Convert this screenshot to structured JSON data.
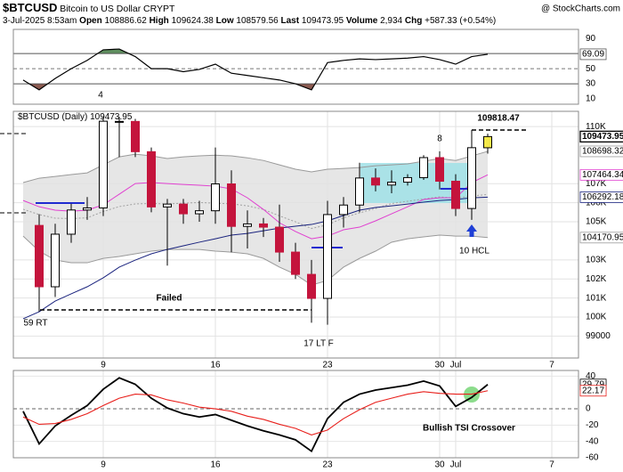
{
  "header": {
    "symbol": "$BTCUSD",
    "name": "Bitcoin to US Dollar",
    "exchange": "CRYPT",
    "credit": "@ StockCharts.com",
    "date": "3-Jul-2025 8:53am",
    "open_label": "Open",
    "high_label": "High",
    "low_label": "Low",
    "last_label": "Last",
    "volume_label": "Volume",
    "volume": "2,934",
    "chg_label": "Chg",
    "chg": "+587.33 (+0.54%)"
  },
  "chart_data": [
    {
      "type": "line",
      "color": "#000000",
      "values": [
        35,
        22,
        37,
        50,
        61,
        75,
        76,
        66,
        50,
        50,
        46,
        49,
        56,
        44,
        41,
        38,
        35,
        30,
        22,
        58,
        61,
        63,
        62,
        63,
        64,
        66,
        62,
        56,
        66,
        69.09,
        null,
        null,
        null,
        null
      ],
      "ylim": [
        3,
        102
      ],
      "yticks": [
        90,
        50,
        30,
        10
      ],
      "overbought": 70,
      "oversold": 30,
      "midline": 50,
      "overbought_color": "#5f8f5f",
      "oversold_color": "#8b5a50",
      "last_label": true
    },
    {
      "type": "candlestick",
      "legend": "$BTCUSD (Daily)",
      "categories": [
        null,
        null,
        null,
        null,
        null,
        "9",
        null,
        null,
        null,
        null,
        null,
        null,
        "16",
        null,
        null,
        null,
        null,
        null,
        null,
        "23",
        null,
        null,
        null,
        null,
        null,
        null,
        "30",
        "Jul",
        null,
        null,
        null,
        null,
        null,
        "7"
      ],
      "open": [
        null,
        104810,
        101590,
        104350,
        105620,
        105730,
        110260,
        110270,
        108680,
        105780,
        105930,
        105420,
        105580,
        106990,
        104760,
        104890,
        104720,
        103410,
        102240,
        100980,
        105380,
        105880,
        107300,
        106930,
        107080,
        107320,
        108370,
        107130,
        105700,
        108886.62,
        null,
        null,
        null,
        null
      ],
      "high": [
        null,
        105400,
        104900,
        105950,
        106300,
        110500,
        110500,
        110400,
        108900,
        106200,
        106200,
        106100,
        108900,
        107700,
        105600,
        105200,
        105900,
        103900,
        103000,
        106100,
        106300,
        108100,
        107800,
        107700,
        107500,
        108500,
        108700,
        107500,
        109818.47,
        109624.38,
        null,
        null,
        null,
        null
      ],
      "low": [
        null,
        100280,
        101050,
        103900,
        105100,
        105300,
        108400,
        108400,
        105500,
        102700,
        104900,
        105000,
        104900,
        103400,
        103600,
        104200,
        102900,
        102000,
        99700,
        99600,
        104700,
        105500,
        106600,
        106500,
        106900,
        107200,
        106700,
        105300,
        105100,
        108579.56,
        null,
        null,
        null,
        null
      ],
      "close": [
        null,
        101590,
        104350,
        105620,
        105730,
        110280,
        110270,
        108680,
        105780,
        105930,
        105420,
        105580,
        106990,
        104760,
        104890,
        104720,
        103410,
        102240,
        100980,
        105380,
        105880,
        107300,
        106930,
        107080,
        107320,
        108370,
        107130,
        105700,
        108890,
        109473.95,
        null,
        null,
        null,
        null
      ],
      "up_color": "#ffffff",
      "down_color": "#c4143c",
      "last_color": "#f3e84a",
      "band_fill": "#e6e6e6",
      "series": [
        {
          "color": "#9a9a9a",
          "last_label": true,
          "values": [
            107060,
            107290,
            107380,
            107480,
            107570,
            107990,
            108410,
            108550,
            108460,
            108320,
            108410,
            108460,
            108500,
            108460,
            108360,
            108220,
            107990,
            107760,
            107620,
            107760,
            107800,
            107850,
            107940,
            107990,
            108040,
            108180,
            108320,
            108220,
            108460,
            108698.32,
            null,
            null,
            null,
            null
          ]
        },
        {
          "color": "#a0a0a0",
          "dash": true,
          "values": [
            105660,
            105380,
            105190,
            105170,
            105210,
            105540,
            105800,
            105940,
            105960,
            105940,
            105980,
            106010,
            105980,
            105940,
            105840,
            105650,
            105310,
            105000,
            104650,
            104840,
            105210,
            105470,
            105700,
            105960,
            106080,
            106200,
            106310,
            106240,
            106360,
            106430,
            null,
            null,
            null,
            null
          ]
        },
        {
          "color": "#9a9a9a",
          "last_label": true,
          "values": [
            104250,
            103460,
            102990,
            102850,
            102850,
            103080,
            103180,
            103320,
            103460,
            103550,
            103550,
            103550,
            103460,
            103410,
            103320,
            103080,
            102620,
            102240,
            101680,
            101920,
            102620,
            103080,
            103460,
            103930,
            104110,
            104210,
            104300,
            104250,
            104250,
            104170.95,
            null,
            null,
            null,
            null
          ]
        },
        {
          "color": "#e040d0",
          "last_label": true,
          "values": [
            106120,
            105790,
            105610,
            105560,
            105610,
            105890,
            106450,
            107010,
            107060,
            107010,
            106960,
            106920,
            106870,
            106730,
            106260,
            105650,
            104950,
            104490,
            104110,
            104250,
            104580,
            104720,
            105050,
            105420,
            105790,
            106170,
            106260,
            106260,
            107060,
            107464.34,
            null,
            null,
            null,
            null
          ]
        },
        {
          "color": "#1a237e",
          "last_label": true,
          "values": [
            99910,
            100280,
            100840,
            101220,
            101590,
            102060,
            102620,
            102990,
            103320,
            103550,
            103740,
            103930,
            104110,
            104300,
            104390,
            104530,
            104670,
            104770,
            104860,
            105050,
            105330,
            105610,
            105750,
            105840,
            105930,
            106030,
            106120,
            106170,
            106260,
            106292.18,
            null,
            null,
            null,
            null
          ]
        }
      ],
      "ylim": [
        97850,
        110800
      ],
      "yticks": [
        {
          "value": 110000,
          "label": "110K"
        },
        {
          "value": 107000,
          "label": "107K"
        },
        {
          "value": 106000,
          "label": "106K"
        },
        {
          "value": 105000,
          "label": "105K"
        },
        {
          "value": 103000,
          "label": "103K"
        },
        {
          "value": 102000,
          "label": "102K"
        },
        {
          "value": 101000,
          "label": "101K"
        },
        {
          "value": 100000,
          "label": "100K"
        },
        99000
      ],
      "grid": true,
      "annotations": [
        {
          "text": "4",
          "color": "#1f2bd0"
        },
        {
          "text": "8",
          "color": "#1f2bd0"
        },
        {
          "text": "10 HCL",
          "color": "#1f2bd0"
        },
        {
          "text": "Failed",
          "color": "#d01010"
        },
        {
          "text": "59 RT",
          "color": "#1f2bd0"
        },
        {
          "text": "17 LT F",
          "color": "#1f2bd0"
        }
      ],
      "high_marker_color": "#d01010"
    },
    {
      "type": "line",
      "categories": [
        null,
        null,
        null,
        null,
        null,
        "9",
        null,
        null,
        null,
        null,
        null,
        null,
        "16",
        null,
        null,
        null,
        null,
        null,
        null,
        "23",
        null,
        null,
        null,
        null,
        null,
        null,
        "30",
        "Jul",
        null,
        null,
        null,
        null,
        null,
        "7"
      ],
      "series": [
        {
          "color": "#000000",
          "values": [
            -3,
            -43,
            -21,
            -8,
            4,
            24,
            38,
            30,
            13,
            1,
            -6,
            -10,
            -7,
            -14,
            -21,
            -27,
            -32,
            -38,
            -52,
            -12,
            8,
            18,
            23,
            26,
            29,
            34,
            28,
            3,
            14,
            29.79,
            null,
            null,
            null,
            null
          ]
        },
        {
          "color": "#e8201c",
          "values": [
            -10,
            -19,
            -18,
            -13,
            -6,
            4,
            13,
            18,
            17,
            11,
            7,
            2,
            0,
            -3,
            -9,
            -13,
            -19,
            -24,
            -32,
            -26,
            -12,
            -1,
            8,
            13,
            18,
            21,
            19,
            18,
            18,
            22.17,
            null,
            null,
            null,
            null
          ]
        }
      ],
      "ylim": [
        -60,
        47
      ],
      "yticks": [
        40,
        0,
        -20,
        -40,
        -60
      ],
      "zero_line": true,
      "last_label": true,
      "annotations": [
        {
          "text": "Bullish TSI Crossover",
          "color": "#1f2bd0"
        }
      ]
    }
  ]
}
